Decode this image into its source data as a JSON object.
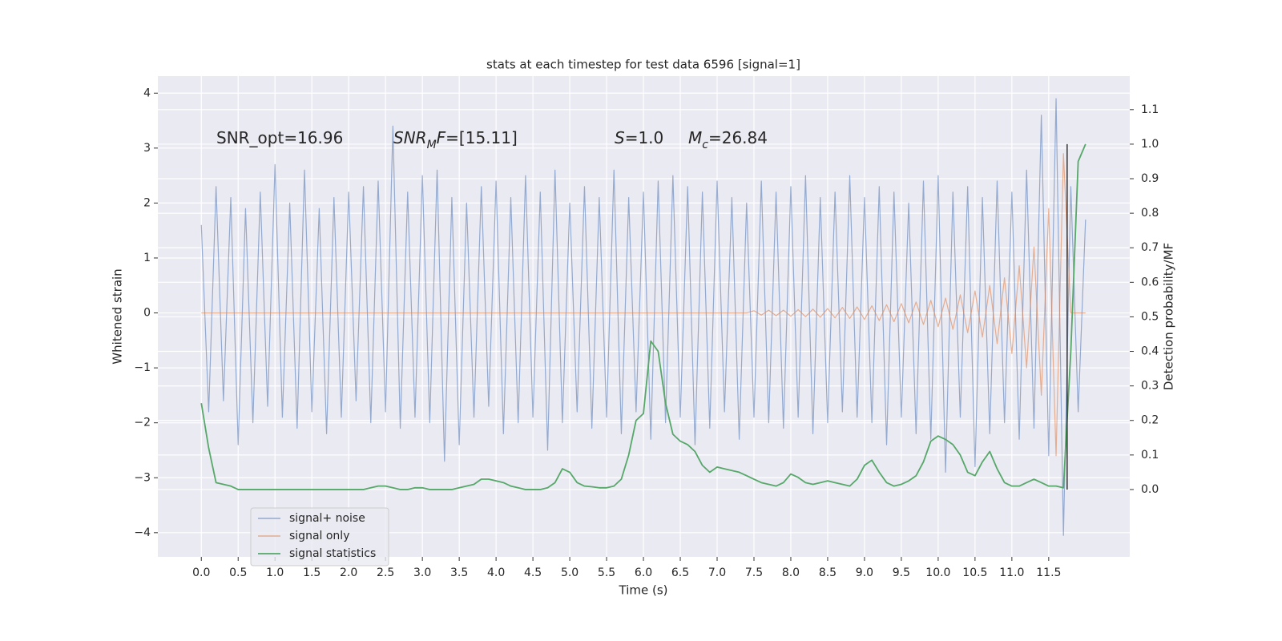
{
  "chart_data": {
    "type": "line",
    "title": "stats at each timestep for test data 6596 [signal=1]",
    "xlabel": "Time (s)",
    "ylabel": "Whitened strain",
    "y2label": "Detection probability/MF",
    "xlim": [
      -0.59,
      12.6
    ],
    "ylim": [
      -4.44,
      4.31
    ],
    "y2lim": [
      -0.195,
      1.197
    ],
    "xticks": [
      {
        "value": 0,
        "label": "0.0"
      },
      0.5,
      {
        "value": 1,
        "label": "1.0"
      },
      1.5,
      {
        "value": 2,
        "label": "2.0"
      },
      2.5,
      {
        "value": 3,
        "label": "3.0"
      },
      3.5,
      {
        "value": 4,
        "label": "4.0"
      },
      4.5,
      {
        "value": 5,
        "label": "5.0"
      },
      5.5,
      {
        "value": 6,
        "label": "6.0"
      },
      6.5,
      {
        "value": 7,
        "label": "7.0"
      },
      7.5,
      {
        "value": 8,
        "label": "8.0"
      },
      8.5,
      {
        "value": 9,
        "label": "9.0"
      },
      9.5,
      {
        "value": 10,
        "label": "10.0"
      },
      10.5,
      {
        "value": 11,
        "label": "11.0"
      },
      11.5
    ],
    "yticks": [
      {
        "value": -4,
        "label": "−4"
      },
      {
        "value": -3,
        "label": "−3"
      },
      {
        "value": -2,
        "label": "−2"
      },
      {
        "value": -1,
        "label": "−1"
      },
      0,
      1,
      2,
      3,
      4
    ],
    "y2ticks": [
      {
        "value": 0,
        "label": "0.0"
      },
      0.1,
      0.2,
      0.3,
      0.4,
      0.5,
      0.6,
      0.7,
      0.8,
      0.9,
      {
        "value": 1,
        "label": "1.0"
      },
      1.1
    ],
    "grid": true,
    "legend": "lower left",
    "x": [
      0,
      0.1,
      0.2,
      0.3,
      0.4,
      0.5,
      0.6,
      0.7,
      0.8,
      0.9,
      1,
      1.1,
      1.2,
      1.3,
      1.4,
      1.5,
      1.6,
      1.7,
      1.8,
      1.9,
      2,
      2.1,
      2.2,
      2.3,
      2.4,
      2.5,
      2.6,
      2.7,
      2.8,
      2.9,
      3,
      3.1,
      3.2,
      3.3,
      3.4,
      3.5,
      3.6,
      3.7,
      3.8,
      3.9,
      4,
      4.1,
      4.2,
      4.3,
      4.4,
      4.5,
      4.6,
      4.7,
      4.8,
      4.9,
      5,
      5.1,
      5.2,
      5.3,
      5.4,
      5.5,
      5.6,
      5.7,
      5.8,
      5.9,
      6,
      6.1,
      6.2,
      6.3,
      6.4,
      6.5,
      6.6,
      6.7,
      6.8,
      6.9,
      7,
      7.1,
      7.2,
      7.3,
      7.4,
      7.5,
      7.6,
      7.7,
      7.8,
      7.9,
      8,
      8.1,
      8.2,
      8.3,
      8.4,
      8.5,
      8.6,
      8.7,
      8.8,
      8.9,
      9,
      9.1,
      9.2,
      9.3,
      9.4,
      9.5,
      9.6,
      9.7,
      9.8,
      9.9,
      10,
      10.1,
      10.2,
      10.3,
      10.4,
      10.5,
      10.6,
      10.7,
      10.8,
      10.9,
      11,
      11.1,
      11.2,
      11.3,
      11.4,
      11.5,
      11.6,
      11.7,
      11.8,
      11.9,
      12
    ],
    "series": [
      {
        "name": "signal+ noise",
        "color": "#4c72b0",
        "alpha": 0.55,
        "values": [
          1.6,
          -1.8,
          2.3,
          -1.6,
          2.1,
          -2.4,
          1.9,
          -2.0,
          2.2,
          -1.7,
          2.7,
          -1.9,
          2.0,
          -2.1,
          2.6,
          -1.8,
          1.9,
          -2.2,
          2.1,
          -1.9,
          2.2,
          -1.6,
          2.3,
          -2.0,
          2.4,
          -1.8,
          3.4,
          -2.1,
          2.2,
          -1.9,
          2.5,
          -2.0,
          2.6,
          -2.7,
          2.1,
          -2.4,
          2.0,
          -1.9,
          2.3,
          -1.7,
          2.4,
          -2.2,
          2.1,
          -2.0,
          2.5,
          -1.9,
          2.2,
          -2.5,
          2.6,
          -2.0,
          2.0,
          -1.8,
          2.3,
          -2.1,
          2.1,
          -1.9,
          2.6,
          -2.2,
          2.1,
          -1.8,
          2.2,
          -2.3,
          2.4,
          -2.0,
          2.5,
          -1.9,
          2.3,
          -2.4,
          2.2,
          -2.1,
          2.4,
          -1.8,
          2.1,
          -2.3,
          2.0,
          -1.9,
          2.4,
          -2.0,
          2.2,
          -2.1,
          2.3,
          -1.9,
          2.5,
          -2.2,
          2.1,
          -2.0,
          2.2,
          -1.8,
          2.5,
          -1.9,
          2.1,
          -2.0,
          2.3,
          -2.4,
          2.2,
          -1.9,
          2.0,
          -2.2,
          2.4,
          -2.3,
          2.5,
          -2.9,
          2.2,
          -1.9,
          2.3,
          -2.8,
          2.1,
          -2.2,
          2.4,
          -2.0,
          2.2,
          -2.3,
          2.6,
          -2.1,
          3.6,
          -2.6,
          3.9,
          -4.05,
          2.3,
          -1.8,
          1.7
        ]
      },
      {
        "name": "signal only",
        "color": "#dd8452",
        "alpha": 0.6,
        "values": [
          0,
          0,
          0,
          0,
          0,
          0,
          0,
          0,
          0,
          0,
          0,
          0,
          0,
          0,
          0,
          0,
          0,
          0,
          0,
          0,
          0,
          0,
          0,
          0,
          0,
          0,
          0,
          0,
          0,
          0,
          0,
          0,
          0,
          0,
          0,
          0,
          0,
          0,
          0,
          0,
          0,
          0,
          0,
          0,
          0,
          0,
          0,
          0,
          0,
          0,
          0,
          0,
          0,
          0,
          0,
          0,
          0,
          0,
          0,
          0,
          0,
          0,
          0,
          0,
          0,
          0,
          0,
          0,
          0,
          0,
          0,
          0,
          0,
          0,
          0,
          0.04,
          -0.04,
          0.05,
          -0.05,
          0.05,
          -0.06,
          0.06,
          -0.07,
          0.07,
          -0.08,
          0.08,
          -0.09,
          0.1,
          -0.1,
          0.11,
          -0.12,
          0.13,
          -0.14,
          0.15,
          -0.16,
          0.17,
          -0.18,
          0.2,
          -0.21,
          0.23,
          -0.25,
          0.27,
          -0.3,
          0.33,
          -0.36,
          0.4,
          -0.44,
          0.5,
          -0.56,
          0.64,
          -0.74,
          0.86,
          -1.0,
          1.2,
          -1.5,
          1.9,
          -2.6,
          2.9,
          0,
          0,
          0
        ]
      },
      {
        "name": "signal statistics",
        "color": "#55a868",
        "alpha": 1,
        "axis": "y2",
        "values": [
          0.25,
          0.12,
          0.02,
          0.015,
          0.01,
          0.0,
          0.0,
          0.0,
          0.0,
          0.0,
          0.0,
          0.0,
          0.0,
          0.0,
          0.0,
          0.0,
          0.0,
          0.0,
          0.0,
          0.0,
          0.0,
          0.0,
          0.0,
          0.005,
          0.01,
          0.01,
          0.005,
          0.0,
          0.0,
          0.005,
          0.005,
          0.0,
          0.0,
          0.0,
          0.0,
          0.005,
          0.01,
          0.015,
          0.03,
          0.03,
          0.025,
          0.02,
          0.01,
          0.005,
          0.0,
          0.0,
          0.0,
          0.005,
          0.02,
          0.06,
          0.05,
          0.02,
          0.01,
          0.008,
          0.005,
          0.005,
          0.01,
          0.03,
          0.1,
          0.2,
          0.22,
          0.43,
          0.4,
          0.25,
          0.16,
          0.14,
          0.13,
          0.11,
          0.07,
          0.05,
          0.065,
          0.06,
          0.055,
          0.05,
          0.04,
          0.03,
          0.02,
          0.015,
          0.01,
          0.02,
          0.045,
          0.035,
          0.02,
          0.015,
          0.02,
          0.025,
          0.02,
          0.015,
          0.01,
          0.03,
          0.07,
          0.085,
          0.05,
          0.02,
          0.01,
          0.015,
          0.025,
          0.04,
          0.08,
          0.14,
          0.155,
          0.145,
          0.13,
          0.1,
          0.05,
          0.04,
          0.08,
          0.11,
          0.06,
          0.02,
          0.01,
          0.01,
          0.02,
          0.03,
          0.02,
          0.01,
          0.01,
          0.005,
          0.4,
          0.95,
          1.0
        ]
      }
    ],
    "vline": {
      "x": 11.75,
      "ymin": 0,
      "ymax": 1,
      "axis": "y2",
      "color": "#333333"
    },
    "annotations": [
      [
        {
          "t": "SNR_opt=16.96"
        }
      ],
      [
        {
          "t": "SNR",
          "italic": true
        },
        {
          "t": "M",
          "italic": true,
          "sub": true
        },
        {
          "t": "F",
          "italic": true
        },
        {
          "t": "=[15.11]"
        }
      ],
      [
        {
          "t": "S",
          "italic": true
        },
        {
          "t": "=1.0"
        }
      ],
      [
        {
          "t": "M",
          "italic": true
        },
        {
          "t": "c",
          "italic": true,
          "sub": true
        },
        {
          "t": "=26.84"
        }
      ]
    ]
  }
}
